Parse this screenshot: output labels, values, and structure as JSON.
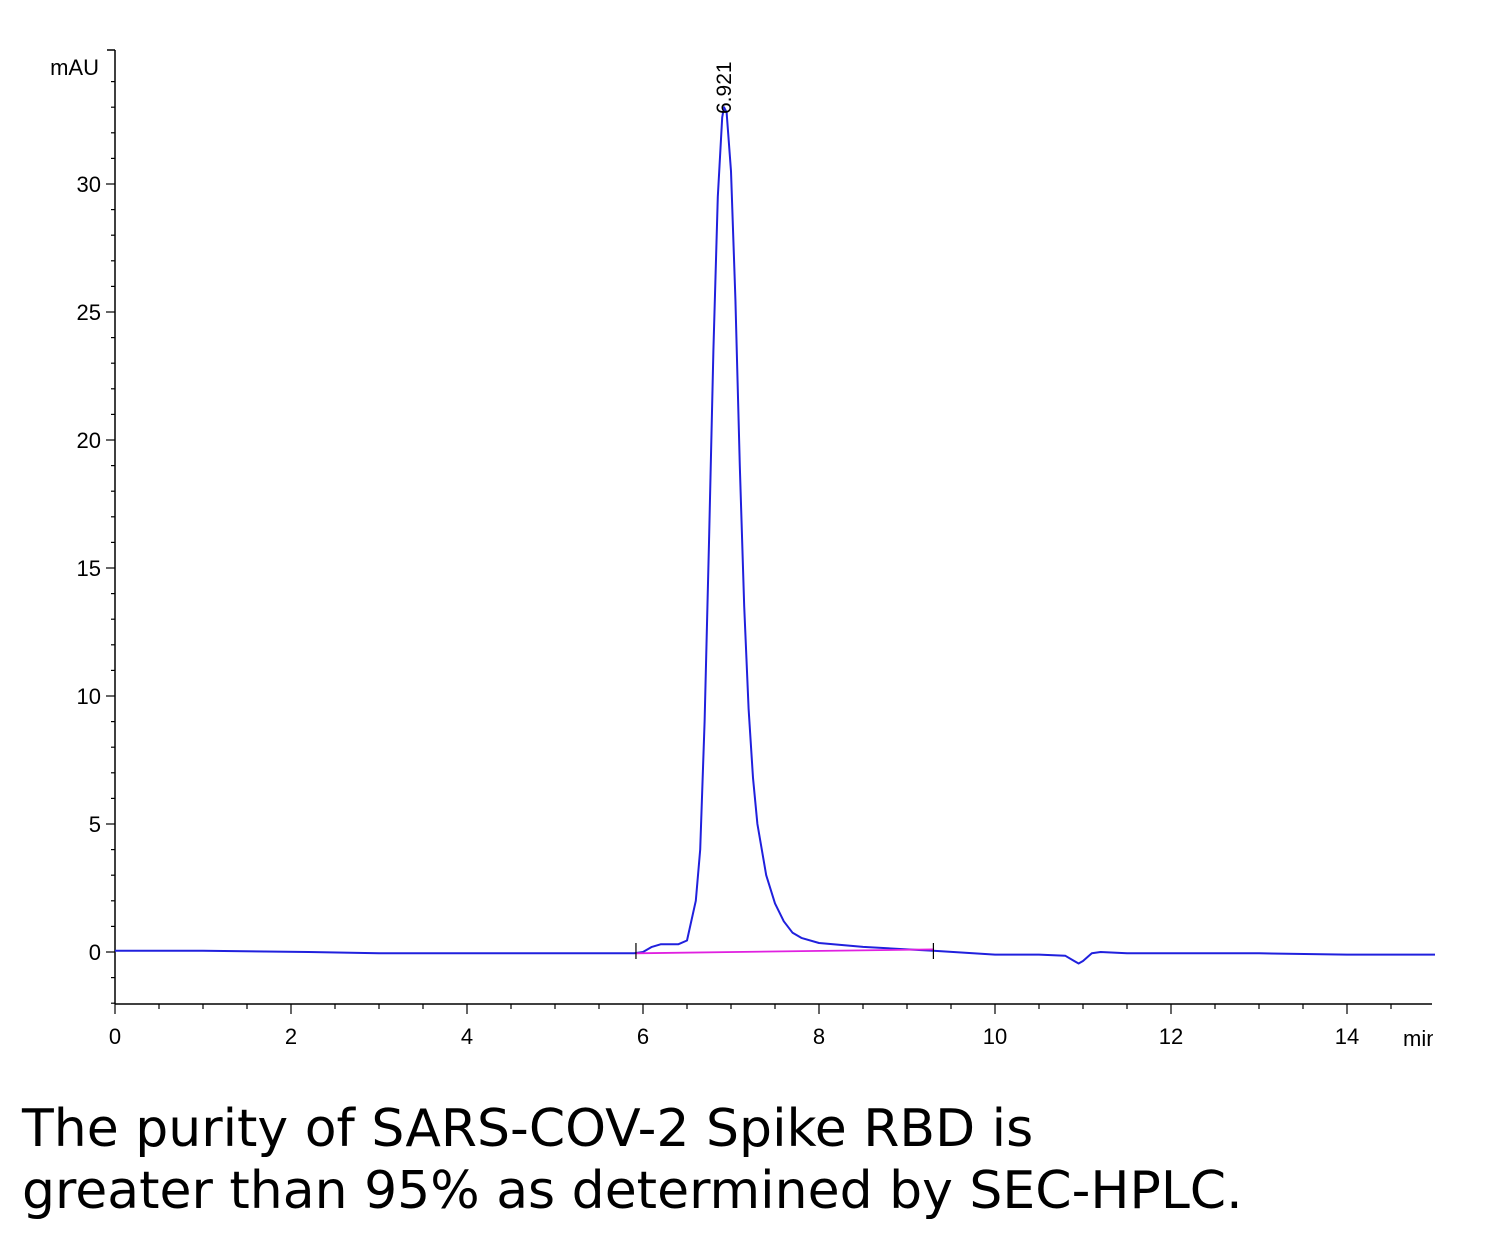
{
  "chart_data": {
    "type": "line",
    "ylabel": "mAU",
    "xlabel": "min",
    "xlim": [
      0,
      15
    ],
    "ylim": [
      -2,
      35
    ],
    "x_ticks": [
      0,
      2,
      4,
      6,
      8,
      10,
      12,
      14
    ],
    "y_ticks": [
      0,
      5,
      10,
      15,
      20,
      25,
      30
    ],
    "grid": false,
    "peak_label": "6.921",
    "peak_label_x": 6.921,
    "series": [
      {
        "color": "#2020dd",
        "points": [
          [
            0,
            0.05
          ],
          [
            1.0,
            0.05
          ],
          [
            2.2,
            0.0
          ],
          [
            3.0,
            -0.05
          ],
          [
            4.0,
            -0.05
          ],
          [
            5.0,
            -0.05
          ],
          [
            5.9,
            -0.05
          ],
          [
            6.0,
            0.0
          ],
          [
            6.1,
            0.2
          ],
          [
            6.2,
            0.3
          ],
          [
            6.4,
            0.3
          ],
          [
            6.5,
            0.45
          ],
          [
            6.6,
            2.0
          ],
          [
            6.65,
            4.0
          ],
          [
            6.7,
            9.0
          ],
          [
            6.75,
            16.0
          ],
          [
            6.8,
            23.5
          ],
          [
            6.85,
            29.5
          ],
          [
            6.9,
            32.6
          ],
          [
            6.921,
            33.0
          ],
          [
            6.95,
            32.8
          ],
          [
            7.0,
            30.5
          ],
          [
            7.05,
            25.5
          ],
          [
            7.1,
            19.0
          ],
          [
            7.15,
            13.5
          ],
          [
            7.2,
            9.5
          ],
          [
            7.25,
            6.8
          ],
          [
            7.3,
            5.0
          ],
          [
            7.4,
            3.0
          ],
          [
            7.5,
            1.9
          ],
          [
            7.6,
            1.2
          ],
          [
            7.7,
            0.75
          ],
          [
            7.8,
            0.55
          ],
          [
            8.0,
            0.35
          ],
          [
            8.5,
            0.2
          ],
          [
            9.0,
            0.1
          ],
          [
            9.3,
            0.05
          ],
          [
            10.0,
            -0.1
          ],
          [
            10.5,
            -0.1
          ],
          [
            10.8,
            -0.15
          ],
          [
            10.9,
            -0.35
          ],
          [
            10.95,
            -0.45
          ],
          [
            11.0,
            -0.35
          ],
          [
            11.1,
            -0.05
          ],
          [
            11.2,
            0.0
          ],
          [
            11.5,
            -0.05
          ],
          [
            12.0,
            -0.05
          ],
          [
            13.0,
            -0.05
          ],
          [
            14.0,
            -0.1
          ],
          [
            15.0,
            -0.1
          ]
        ]
      },
      {
        "color": "#e020e0",
        "points": [
          [
            5.92,
            -0.05
          ],
          [
            9.3,
            0.1
          ]
        ]
      }
    ],
    "baseline_marks": [
      5.92,
      9.3
    ]
  },
  "caption": {
    "line1": "The purity of SARS-COV-2 Spike RBD is",
    "line2": "greater than 95% as determined by SEC-HPLC."
  }
}
